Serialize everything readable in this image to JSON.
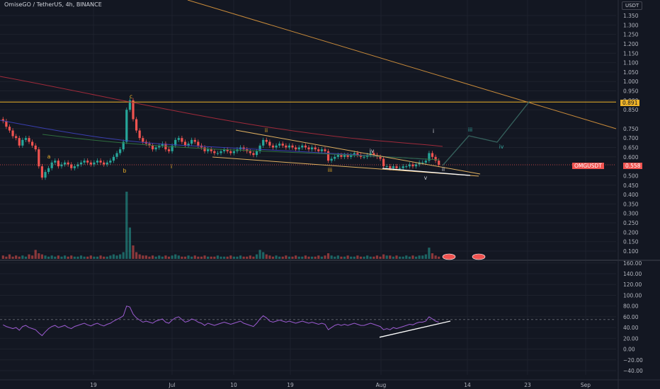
{
  "header": {
    "symbol_line": "OmiseGO / TetherUS, 4h, BINANCE",
    "currency_label": "USDT"
  },
  "colors": {
    "background": "#131722",
    "grid": "#1e222d",
    "candle_up": "#26a69a",
    "candle_down": "#ef5350",
    "resistance_line": "#f0b429",
    "trend_line": "#e0b060",
    "rsi_line": "#9c5bd1",
    "projection_line": "#35605c"
  },
  "price_tag": {
    "value": "0.891"
  },
  "last_price_tag": {
    "name": "OMGUSDT",
    "value": "0.558"
  },
  "volume_badges": [
    "",
    ""
  ],
  "chart_data": [
    {
      "type": "candlestick",
      "price_axis": {
        "ticks": [
          "1.350",
          "1.300",
          "1.250",
          "1.200",
          "1.150",
          "1.100",
          "1.050",
          "1.000",
          "0.950",
          "0.900",
          "0.850",
          "0.750",
          "0.700",
          "0.650",
          "0.600",
          "0.500",
          "0.450",
          "0.400",
          "0.350",
          "0.300",
          "0.250",
          "0.200",
          "0.150",
          "0.100"
        ],
        "ylim": [
          0.05,
          1.4
        ]
      },
      "time_axis": {
        "ticks": [
          "19",
          "Jul",
          "10",
          "19",
          "Aug",
          "14",
          "23",
          "Sep"
        ]
      },
      "series_close": [
        0.79,
        0.76,
        0.74,
        0.71,
        0.7,
        0.66,
        0.69,
        0.7,
        0.68,
        0.66,
        0.64,
        0.55,
        0.49,
        0.52,
        0.54,
        0.57,
        0.58,
        0.55,
        0.56,
        0.57,
        0.56,
        0.54,
        0.55,
        0.56,
        0.57,
        0.58,
        0.57,
        0.56,
        0.57,
        0.58,
        0.57,
        0.56,
        0.57,
        0.58,
        0.6,
        0.62,
        0.64,
        0.68,
        0.85,
        0.9,
        0.8,
        0.74,
        0.7,
        0.68,
        0.67,
        0.66,
        0.64,
        0.65,
        0.66,
        0.67,
        0.64,
        0.63,
        0.66,
        0.69,
        0.7,
        0.68,
        0.66,
        0.67,
        0.69,
        0.68,
        0.66,
        0.65,
        0.63,
        0.64,
        0.63,
        0.62,
        0.62,
        0.63,
        0.64,
        0.63,
        0.62,
        0.63,
        0.64,
        0.65,
        0.64,
        0.63,
        0.62,
        0.61,
        0.63,
        0.66,
        0.69,
        0.68,
        0.66,
        0.65,
        0.66,
        0.67,
        0.66,
        0.65,
        0.66,
        0.65,
        0.64,
        0.65,
        0.66,
        0.65,
        0.64,
        0.65,
        0.64,
        0.63,
        0.64,
        0.63,
        0.58,
        0.59,
        0.6,
        0.61,
        0.6,
        0.61,
        0.6,
        0.61,
        0.62,
        0.61,
        0.6,
        0.6,
        0.61,
        0.62,
        0.61,
        0.6,
        0.59,
        0.55,
        0.55,
        0.54,
        0.55,
        0.54,
        0.54,
        0.55,
        0.55,
        0.56,
        0.55,
        0.56,
        0.57,
        0.57,
        0.58,
        0.62,
        0.6,
        0.58,
        0.558
      ],
      "volume": [
        3,
        2,
        4,
        2,
        3,
        2,
        3,
        2,
        4,
        3,
        8,
        5,
        4,
        3,
        2,
        3,
        2,
        3,
        2,
        3,
        2,
        3,
        2,
        2,
        3,
        2,
        2,
        3,
        2,
        2,
        3,
        2,
        2,
        3,
        4,
        3,
        4,
        6,
        60,
        28,
        12,
        6,
        4,
        3,
        3,
        2,
        3,
        2,
        3,
        2,
        3,
        2,
        3,
        4,
        3,
        2,
        2,
        3,
        2,
        3,
        2,
        2,
        3,
        2,
        2,
        2,
        3,
        2,
        2,
        2,
        3,
        2,
        2,
        3,
        2,
        2,
        3,
        2,
        4,
        8,
        6,
        4,
        3,
        2,
        3,
        2,
        2,
        3,
        2,
        2,
        3,
        2,
        2,
        3,
        2,
        2,
        2,
        3,
        2,
        3,
        5,
        3,
        2,
        3,
        2,
        2,
        3,
        2,
        2,
        3,
        2,
        2,
        3,
        2,
        2,
        3,
        2,
        4,
        3,
        3,
        2,
        3,
        2,
        2,
        3,
        2,
        3,
        2,
        3,
        3,
        4,
        10,
        5,
        3,
        2
      ],
      "wave_labels": [
        "c",
        "a",
        "b",
        "i",
        "ii",
        "iii",
        "iv",
        "v",
        "i",
        "ii",
        "iii",
        "iv"
      ],
      "resistance_level": 0.891
    },
    {
      "type": "line",
      "name": "",
      "y_axis": {
        "ticks": [
          "160.00",
          "140.00",
          "120.00",
          "100.00",
          "80.00",
          "60.00",
          "40.00",
          "20.00",
          "0.00",
          "−20.00",
          "−40.00"
        ],
        "ylim": [
          -45,
          162
        ]
      },
      "values": [
        45,
        42,
        40,
        38,
        40,
        35,
        42,
        44,
        40,
        38,
        36,
        30,
        25,
        32,
        38,
        42,
        44,
        40,
        42,
        44,
        40,
        38,
        42,
        44,
        46,
        48,
        45,
        43,
        46,
        48,
        45,
        43,
        46,
        48,
        52,
        55,
        58,
        62,
        80,
        78,
        65,
        58,
        54,
        50,
        52,
        50,
        48,
        52,
        54,
        56,
        50,
        48,
        54,
        58,
        60,
        55,
        50,
        52,
        56,
        54,
        50,
        48,
        44,
        48,
        46,
        44,
        46,
        48,
        50,
        48,
        46,
        48,
        50,
        52,
        48,
        46,
        44,
        42,
        48,
        56,
        62,
        58,
        52,
        50,
        52,
        54,
        52,
        50,
        52,
        50,
        48,
        50,
        52,
        50,
        48,
        50,
        48,
        46,
        48,
        46,
        36,
        40,
        44,
        46,
        44,
        46,
        44,
        46,
        48,
        46,
        44,
        44,
        46,
        48,
        46,
        44,
        42,
        36,
        38,
        36,
        40,
        38,
        40,
        42,
        44,
        46,
        45,
        48,
        50,
        50,
        52,
        60,
        56,
        52,
        50
      ]
    }
  ]
}
